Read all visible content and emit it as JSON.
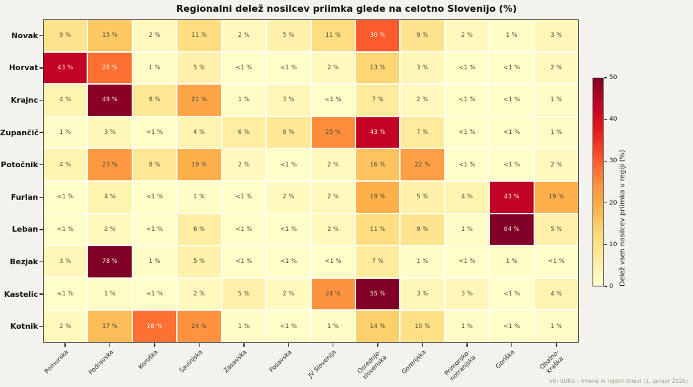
{
  "title": "Regionalni delež nosilcev priimka glede na celotno Slovenijo (%)",
  "source_note": "Vir: SURS – Imena in rojstni dnevi (1. januar 2025)",
  "chart_data": {
    "type": "heatmap",
    "rows": [
      "Novak",
      "Horvat",
      "Krajnc",
      "Zupančič",
      "Potočnik",
      "Furlan",
      "Leban",
      "Bezjak",
      "Kastelic",
      "Kotnik"
    ],
    "columns": [
      "Pomurska",
      "Podravska",
      "Koroška",
      "Savinjska",
      "Zasavska",
      "Posavska",
      "JV Slovenija",
      "Osrednje-\nslovenska",
      "Gorenjska",
      "Primorsko-\nnotranjska",
      "Goriška",
      "Obalno-\nkraška"
    ],
    "values": [
      [
        "9",
        "15",
        "2",
        "11",
        "2",
        "5",
        "11",
        "30",
        "9",
        "2",
        "1",
        "3"
      ],
      [
        "43",
        "28",
        "1",
        "5",
        "<1",
        "<1",
        "2",
        "13",
        "3",
        "<1",
        "<1",
        "2"
      ],
      [
        "4",
        "49",
        "8",
        "21",
        "1",
        "3",
        "<1",
        "7",
        "2",
        "<1",
        "<1",
        "1"
      ],
      [
        "1",
        "3",
        "<1",
        "4",
        "6",
        "8",
        "25",
        "43",
        "7",
        "<1",
        "<1",
        "1"
      ],
      [
        "4",
        "23",
        "8",
        "19",
        "2",
        "<1",
        "2",
        "16",
        "22",
        "<1",
        "<1",
        "2"
      ],
      [
        "<1",
        "4",
        "<1",
        "1",
        "<1",
        "2",
        "2",
        "19",
        "5",
        "4",
        "43",
        "19"
      ],
      [
        "<1",
        "2",
        "<1",
        "6",
        "<1",
        "<1",
        "2",
        "11",
        "9",
        "1",
        "64",
        "5"
      ],
      [
        "3",
        "78",
        "1",
        "5",
        "<1",
        "<1",
        "<1",
        "7",
        "1",
        "<1",
        "1",
        "<1"
      ],
      [
        "<1",
        "1",
        "<1",
        "2",
        "5",
        "2",
        "24",
        "55",
        "3",
        "3",
        "<1",
        "4"
      ],
      [
        "2",
        "17",
        "28",
        "24",
        "1",
        "<1",
        "1",
        "14",
        "10",
        "1",
        "<1",
        "1"
      ]
    ],
    "value_suffix": " %",
    "vmin": 0,
    "vmax": 50,
    "colormap": "YlOrRd",
    "colormap_stops": [
      "#ffffcc",
      "#ffeda0",
      "#fed976",
      "#feb24c",
      "#fd8d3c",
      "#fc4e2a",
      "#e31a1c",
      "#bd0026",
      "#800026"
    ],
    "colorbar_label": "Delež vseh nosilcev priimka v regiji (%)",
    "colorbar_ticks": [
      0,
      10,
      20,
      30,
      40,
      50
    ],
    "legend_position": "right",
    "grid": true
  }
}
